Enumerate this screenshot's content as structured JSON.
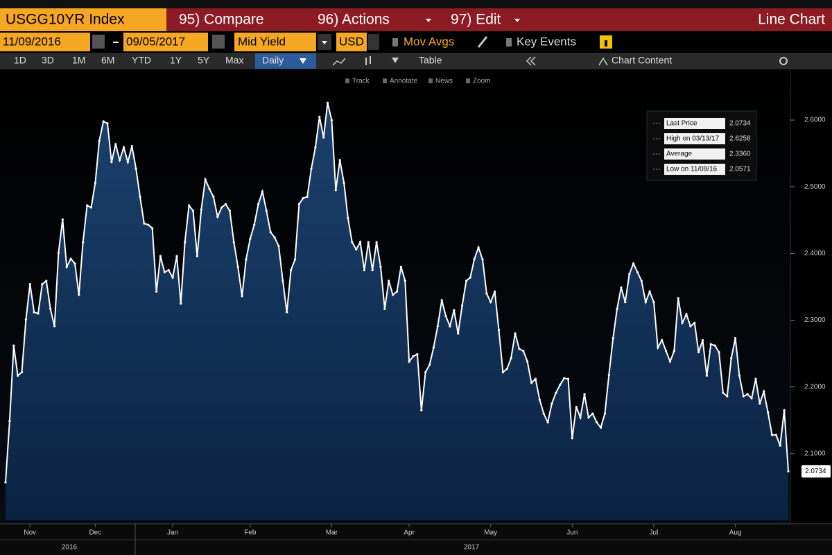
{
  "toolbar": {
    "ticker": "USGG10YR Index",
    "menu": [
      "95) Compare",
      "96) Actions",
      "97) Edit"
    ],
    "view": "Line Chart",
    "start_date": "11/09/2016",
    "end_date": "09/05/2017",
    "field": "Mid Yield",
    "currency": "USD",
    "mov_avgs": "Mov Avgs",
    "key_events": "Key Events",
    "ranges": [
      "1D",
      "3D",
      "1M",
      "6M",
      "YTD",
      "1Y",
      "5Y",
      "Max"
    ],
    "period": "Daily",
    "table": "Table",
    "chart_content": "Chart Content",
    "tools": [
      "Track",
      "Annotate",
      "News",
      "Zoom"
    ]
  },
  "chart_data": {
    "type": "line",
    "color": "#ffffff",
    "fill_color": "#123358",
    "categories": [
      null,
      null,
      null,
      null,
      null,
      null,
      "Nov",
      null,
      null,
      null,
      null,
      null,
      null,
      null,
      null,
      null,
      null,
      null,
      null,
      null,
      null,
      null,
      "Dec",
      null,
      null,
      null,
      null,
      null,
      null,
      null,
      null,
      null,
      null,
      null,
      null,
      null,
      null,
      null,
      null,
      null,
      null,
      "Jan",
      null,
      null,
      null,
      null,
      null,
      null,
      null,
      null,
      null,
      null,
      null,
      null,
      null,
      null,
      null,
      null,
      null,
      null,
      "Feb",
      null,
      null,
      null,
      null,
      null,
      null,
      null,
      null,
      null,
      null,
      null,
      null,
      null,
      null,
      null,
      null,
      null,
      null,
      null,
      "Mar",
      null,
      null,
      null,
      null,
      null,
      null,
      null,
      null,
      null,
      null,
      null,
      null,
      null,
      null,
      null,
      null,
      null,
      null,
      "Apr",
      null,
      null,
      null,
      null,
      null,
      null,
      null,
      null,
      null,
      null,
      null,
      null,
      null,
      null,
      null,
      null,
      null,
      null,
      null,
      "May",
      null,
      null,
      null,
      null,
      null,
      null,
      null,
      null,
      null,
      null,
      null,
      null,
      null,
      null,
      null,
      null,
      null,
      null,
      null,
      "Jun",
      null,
      null,
      null,
      null,
      null,
      null,
      null,
      null,
      null,
      null,
      null,
      null,
      null,
      null,
      null,
      null,
      null,
      null,
      null,
      "Jul",
      null,
      null,
      null,
      null,
      null,
      null,
      null,
      null,
      null,
      null,
      null,
      null,
      null,
      null,
      null,
      null,
      null,
      null,
      null,
      "Aug",
      null,
      null,
      null,
      null,
      null,
      null,
      null,
      null,
      null,
      null,
      null,
      null,
      null
    ],
    "values": [
      2.0571,
      2.149,
      2.262,
      2.217,
      2.222,
      2.301,
      2.354,
      2.312,
      2.31,
      2.354,
      2.359,
      2.317,
      2.291,
      2.401,
      2.451,
      2.38,
      2.392,
      2.385,
      2.338,
      2.417,
      2.472,
      2.469,
      2.506,
      2.569,
      2.598,
      2.595,
      2.537,
      2.564,
      2.54,
      2.559,
      2.537,
      2.561,
      2.527,
      2.485,
      2.445,
      2.443,
      2.438,
      2.343,
      2.396,
      2.372,
      2.375,
      2.364,
      2.396,
      2.325,
      2.417,
      2.472,
      2.464,
      2.396,
      2.466,
      2.511,
      2.497,
      2.485,
      2.455,
      2.469,
      2.474,
      2.464,
      2.417,
      2.38,
      2.336,
      2.391,
      2.422,
      2.443,
      2.474,
      2.493,
      2.464,
      2.432,
      2.424,
      2.411,
      2.359,
      2.312,
      2.375,
      2.391,
      2.474,
      2.483,
      2.485,
      2.527,
      2.559,
      2.605,
      2.574,
      2.6258,
      2.6,
      2.495,
      2.54,
      2.506,
      2.453,
      2.417,
      2.406,
      2.417,
      2.375,
      2.417,
      2.375,
      2.417,
      2.38,
      2.317,
      2.359,
      2.338,
      2.343,
      2.38,
      2.359,
      2.238,
      2.246,
      2.249,
      2.165,
      2.222,
      2.233,
      2.259,
      2.291,
      2.33,
      2.306,
      2.291,
      2.315,
      2.28,
      2.322,
      2.359,
      2.364,
      2.392,
      2.409,
      2.391,
      2.34,
      2.327,
      2.343,
      2.285,
      2.222,
      2.227,
      2.243,
      2.28,
      2.257,
      2.254,
      2.238,
      2.206,
      2.212,
      2.181,
      2.16,
      2.147,
      2.175,
      2.191,
      2.203,
      2.213,
      2.212,
      2.123,
      2.17,
      2.154,
      2.189,
      2.154,
      2.16,
      2.147,
      2.139,
      2.16,
      2.218,
      2.273,
      2.317,
      2.349,
      2.327,
      2.369,
      2.385,
      2.372,
      2.359,
      2.327,
      2.343,
      2.327,
      2.259,
      2.27,
      2.254,
      2.238,
      2.254,
      2.333,
      2.296,
      2.309,
      2.291,
      2.296,
      2.252,
      2.27,
      2.217,
      2.264,
      2.262,
      2.252,
      2.191,
      2.186,
      2.243,
      2.273,
      2.217,
      2.186,
      2.189,
      2.183,
      2.212,
      2.175,
      2.193,
      2.162,
      2.128,
      2.128,
      2.112,
      2.165,
      2.0734
    ],
    "ylim": [
      2.0,
      2.676
    ],
    "yticks": [
      {
        "value": 2.1,
        "label": "2.1000"
      },
      {
        "value": 2.2,
        "label": "2.2000"
      },
      {
        "value": 2.3,
        "label": "2.3000"
      },
      {
        "value": 2.4,
        "label": "2.4000"
      },
      {
        "value": 2.5,
        "label": "2.5000"
      },
      {
        "value": 2.6,
        "label": "2.6000"
      }
    ],
    "x_years": [
      "2016",
      "2017"
    ],
    "stats": [
      {
        "label": "Last Price",
        "value": "2.0734"
      },
      {
        "label": "High on 03/13/17",
        "value": "2.6258"
      },
      {
        "label": "Average",
        "value": "2.3360"
      },
      {
        "label": "Low on 11/09/16",
        "value": "2.0571"
      }
    ]
  }
}
